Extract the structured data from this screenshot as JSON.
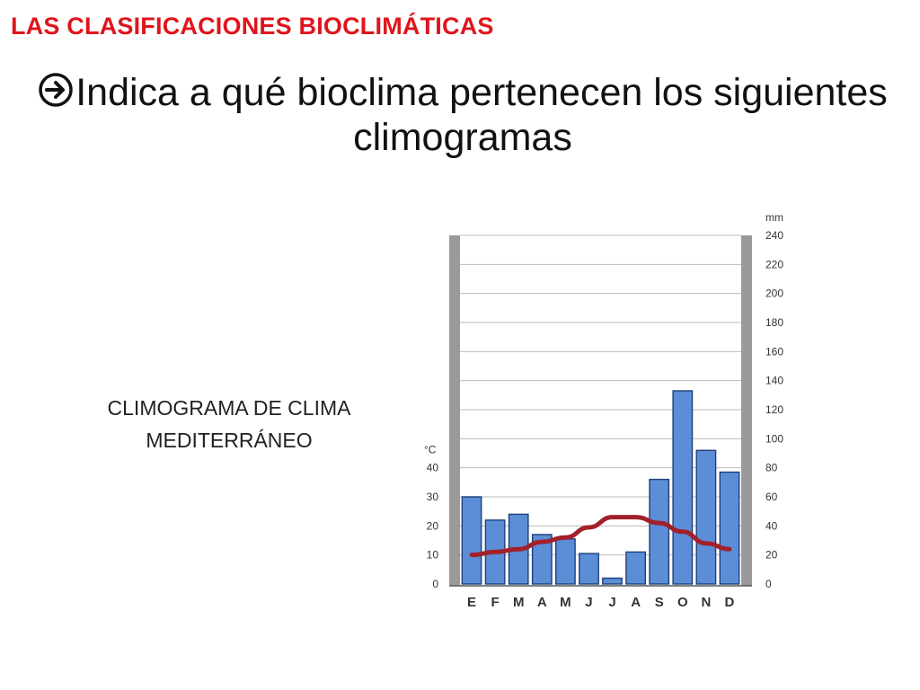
{
  "header": {
    "title": "LAS CLASIFICACIONES BIOCLIMÁTICAS"
  },
  "question": {
    "arrow_icon": "circled-right-arrow-icon",
    "text": "Indica a qué bioclima pertenecen los siguientes climogramas"
  },
  "caption": {
    "line1": "CLIMOGRAMA DE CLIMA",
    "line2": "MEDITERRÁNEO"
  },
  "chart_data": {
    "type": "bar+line",
    "categories": [
      "E",
      "F",
      "M",
      "A",
      "M",
      "J",
      "J",
      "A",
      "S",
      "O",
      "N",
      "D"
    ],
    "series": [
      {
        "type": "bar",
        "axis": "right",
        "values": [
          60,
          44,
          48,
          34,
          31,
          21,
          4,
          22,
          72,
          133,
          92,
          77
        ]
      },
      {
        "type": "line",
        "axis": "left",
        "values": [
          10,
          11,
          12,
          14.5,
          16,
          19.5,
          23,
          23,
          21,
          18,
          14,
          12
        ]
      }
    ],
    "left_axis": {
      "unit": "°C",
      "ticks": [
        0,
        10,
        20,
        30,
        40
      ]
    },
    "right_axis": {
      "unit": "mm",
      "ticks": [
        0,
        20,
        40,
        60,
        80,
        100,
        120,
        140,
        160,
        180,
        200,
        220,
        240
      ]
    },
    "colors": {
      "bars": "#5b8ed6",
      "bar_stroke": "#1f3f7a",
      "line": "#a3202a",
      "walls": "#9a9a9a",
      "grid": "#bbbbbb"
    },
    "grid": true
  }
}
